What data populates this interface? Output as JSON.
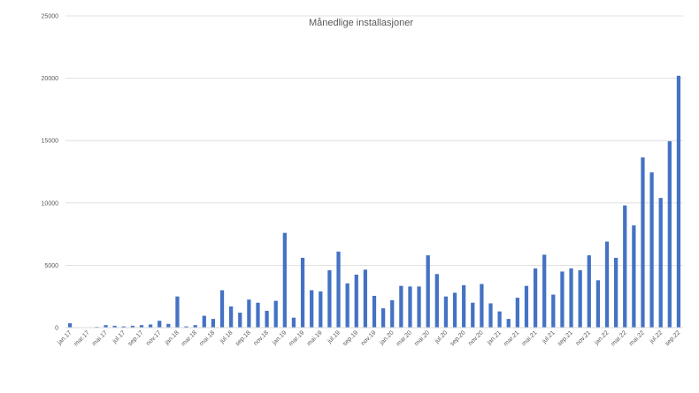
{
  "chart_data": {
    "type": "bar",
    "title": "Månedlige installasjoner",
    "xlabel": "",
    "ylabel": "",
    "ylim": [
      0,
      25000
    ],
    "yticks": [
      0,
      5000,
      10000,
      15000,
      20000,
      25000
    ],
    "grid": true,
    "bar_color": "#4472c4",
    "categories": [
      "jan.17",
      "feb.17",
      "mar.17",
      "apr.17",
      "mai.17",
      "jun.17",
      "jul.17",
      "aug.17",
      "sep.17",
      "okt.17",
      "nov.17",
      "des.17",
      "jan.18",
      "feb.18",
      "mar.18",
      "apr.18",
      "mai.18",
      "jun.18",
      "jul.18",
      "aug.18",
      "sep.18",
      "okt.18",
      "nov.18",
      "des.18",
      "jan.19",
      "feb.19",
      "mar.19",
      "apr.19",
      "mai.19",
      "jun.19",
      "jul.19",
      "aug.19",
      "sep.19",
      "okt.19",
      "nov.19",
      "des.19",
      "jan.20",
      "feb.20",
      "mar.20",
      "apr.20",
      "mai.20",
      "jun.20",
      "jul.20",
      "aug.20",
      "sep.20",
      "okt.20",
      "nov.20",
      "des.20",
      "jan.21",
      "feb.21",
      "mar.21",
      "apr.21",
      "mai.21",
      "jun.21",
      "jul.21",
      "aug.21",
      "sep.21",
      "okt.21",
      "nov.21",
      "des.21",
      "jan.22",
      "feb.22",
      "mar.22",
      "apr.22",
      "mai.22",
      "jun.22",
      "jul.22",
      "aug.22",
      "sep.22"
    ],
    "values": [
      350,
      30,
      30,
      60,
      200,
      150,
      100,
      150,
      200,
      250,
      550,
      300,
      2500,
      100,
      200,
      950,
      700,
      3000,
      1700,
      1200,
      2250,
      2000,
      1350,
      2150,
      7600,
      800,
      5600,
      3000,
      2900,
      4600,
      6100,
      3550,
      4250,
      4650,
      2550,
      1550,
      2200,
      3350,
      3300,
      3300,
      5800,
      4300,
      2500,
      2800,
      3400,
      2000,
      3500,
      1950,
      1300,
      700,
      2400,
      3350,
      4750,
      5850,
      2650,
      4500,
      4750,
      4600,
      5800,
      3800,
      6900,
      5600,
      9800,
      8200,
      13650,
      12450,
      10400,
      14950,
      20200
    ],
    "label_every": 2
  }
}
